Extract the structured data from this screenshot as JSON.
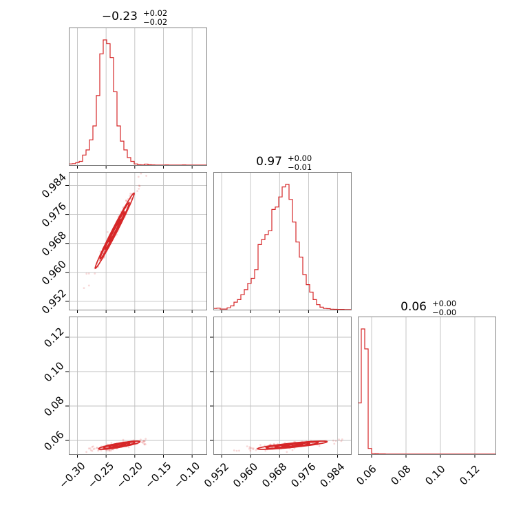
{
  "figure": {
    "titles": [
      {
        "value": "−0.23",
        "sup": "+0.02",
        "sub": "−0.02"
      },
      {
        "value": "0.97",
        "sup": "+0.00",
        "sub": "−0.01"
      },
      {
        "value": "0.06",
        "sup": "+0.00",
        "sub": "−0.00"
      }
    ],
    "accent_color": "#d62728"
  },
  "chart_data": {
    "type": "corner",
    "grid": true,
    "parameters": [
      {
        "name": "",
        "range": [
          -0.315,
          -0.075
        ],
        "ticks": [
          -0.3,
          -0.25,
          -0.2,
          -0.15,
          -0.1
        ],
        "tick_labels": [
          "−0.30",
          "−0.25",
          "−0.20",
          "−0.15",
          "−0.10"
        ]
      },
      {
        "name": "",
        "range": [
          0.9497,
          0.9877
        ],
        "ticks": [
          0.952,
          0.96,
          0.968,
          0.976,
          0.984
        ],
        "tick_labels": [
          "0.952",
          "0.960",
          "0.968",
          "0.976",
          "0.984"
        ]
      },
      {
        "name": "",
        "range": [
          0.052,
          0.132
        ],
        "ticks": [
          0.06,
          0.08,
          0.1,
          0.12
        ],
        "tick_labels": [
          "0.06",
          "0.08",
          "0.10",
          "0.12"
        ]
      }
    ],
    "histograms": [
      {
        "param": 0,
        "edges_start": -0.315,
        "bin_width": 0.006,
        "counts": [
          0.01,
          0.012,
          0.02,
          0.03,
          0.08,
          0.12,
          0.2,
          0.31,
          0.55,
          0.88,
          0.99,
          0.96,
          0.85,
          0.58,
          0.31,
          0.19,
          0.12,
          0.06,
          0.03,
          0.01,
          0.003,
          0.002,
          0.008,
          0.003,
          0.002,
          0.001,
          0.001,
          0.001,
          0.002,
          0.001,
          0.001,
          0.001,
          0.001,
          0.002,
          0.001,
          0.001,
          0.001,
          0.001,
          0.001,
          0.001
        ]
      },
      {
        "param": 1,
        "edges_start": 0.9497,
        "bin_width": 0.00095,
        "counts": [
          0.01,
          0.012,
          0.005,
          0.005,
          0.015,
          0.03,
          0.06,
          0.08,
          0.12,
          0.16,
          0.21,
          0.25,
          0.32,
          0.52,
          0.56,
          0.6,
          0.63,
          0.8,
          0.82,
          0.9,
          0.98,
          1.0,
          0.88,
          0.7,
          0.54,
          0.42,
          0.28,
          0.2,
          0.14,
          0.08,
          0.04,
          0.02,
          0.01,
          0.008,
          0.004,
          0.003,
          0.002,
          0.002,
          0.001,
          0.001
        ]
      },
      {
        "param": 2,
        "edges_start": 0.052,
        "bin_width": 0.002,
        "counts": [
          0.36,
          0.88,
          0.74,
          0.04,
          0.004,
          0.003,
          0.002,
          0.002,
          0.001,
          0.001,
          0.001,
          0.001,
          0.001,
          0.001,
          0.001,
          0.001,
          0.001,
          0.001,
          0.001,
          0.001,
          0.001,
          0.001,
          0.001,
          0.001,
          0.001,
          0.001,
          0.001,
          0.001,
          0.001,
          0.001,
          0.001,
          0.001,
          0.001,
          0.001,
          0.001,
          0.001,
          0.001,
          0.001,
          0.001,
          0.001
        ]
      }
    ],
    "correlations": [
      {
        "x": 0,
        "y": 1,
        "mean": [
          -0.235,
          0.9715
        ],
        "std": [
          0.017,
          0.0052
        ],
        "rho": 0.99
      },
      {
        "x": 0,
        "y": 2,
        "mean": [
          -0.227,
          0.0572
        ],
        "std": [
          0.018,
          0.0012
        ],
        "rho": 0.85
      },
      {
        "x": 1,
        "y": 2,
        "mean": [
          0.9715,
          0.0572
        ],
        "std": [
          0.0048,
          0.0012
        ],
        "rho": 0.85
      }
    ]
  }
}
